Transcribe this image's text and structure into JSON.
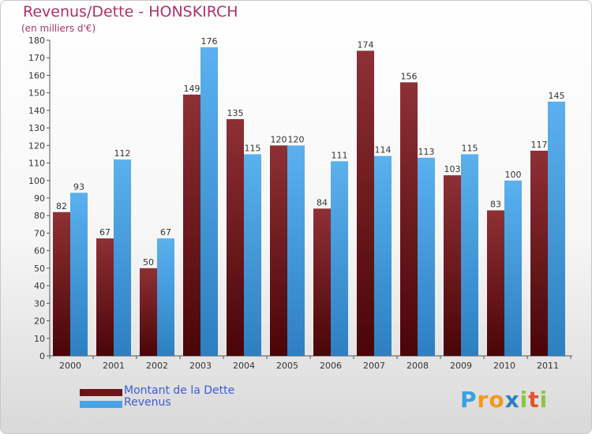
{
  "header": {
    "title": "Revenus/Dette - HONSKIRCH",
    "subtitle": "(en milliers d'€)"
  },
  "brand": {
    "text": "Proxiti"
  },
  "chart_data": {
    "type": "bar",
    "title": "Revenus/Dette - HONSKIRCH",
    "subtitle": "(en milliers d'€)",
    "categories": [
      "2000",
      "2001",
      "2002",
      "2003",
      "2004",
      "2005",
      "2006",
      "2007",
      "2008",
      "2009",
      "2010",
      "2011"
    ],
    "series": [
      {
        "name": "Montant de la Dette",
        "color": "#7a1f22",
        "values": [
          82,
          67,
          50,
          149,
          135,
          120,
          84,
          174,
          156,
          103,
          83,
          117
        ]
      },
      {
        "name": "Revenus",
        "color": "#4aa3e6",
        "values": [
          93,
          112,
          67,
          176,
          115,
          120,
          111,
          114,
          113,
          115,
          100,
          145
        ]
      }
    ],
    "ylim": [
      0,
      180
    ],
    "yticks": [
      0,
      10,
      20,
      30,
      40,
      50,
      60,
      70,
      80,
      90,
      100,
      110,
      120,
      130,
      140,
      150,
      160,
      170,
      180
    ],
    "grid": false,
    "legend": "bottom-left"
  }
}
